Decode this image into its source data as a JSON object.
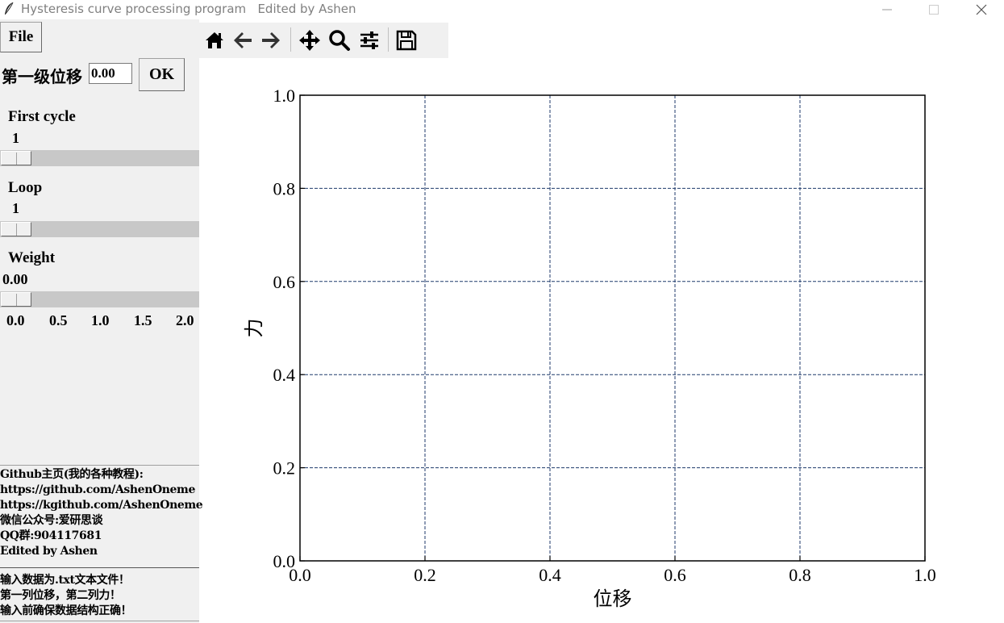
{
  "window": {
    "title": "Hysteresis curve processing program   Edited by Ashen",
    "minimize_icon": "minimize-icon",
    "maximize_icon": "maximize-icon",
    "close_icon": "close-icon"
  },
  "menu": {
    "file_label": "File"
  },
  "displacement": {
    "label": "第一级位移",
    "value": "0.00",
    "ok_label": "OK"
  },
  "sliders": [
    {
      "label": "First cycle",
      "value": "1"
    },
    {
      "label": "Loop",
      "value": "1"
    },
    {
      "label": "Weight",
      "value": "0.00",
      "ticks": [
        "0.0",
        "0.5",
        "1.0",
        "1.5",
        "2.0"
      ]
    }
  ],
  "info": {
    "lines": [
      "Github主页(我的各种教程):",
      "https://github.com/AshenOneme",
      "https://kgithub.com/AshenOneme",
      "微信公众号:爱研思谈",
      "QQ群:904117681",
      "Edited by Ashen"
    ],
    "notes": [
      "输入数据为.txt文本文件！",
      "第一列位移，第二列力！",
      "输入前确保数据结构正确！"
    ]
  },
  "toolbar": {
    "icons": [
      "home-icon",
      "back-arrow-icon",
      "forward-arrow-icon",
      "pan-icon",
      "zoom-icon",
      "configure-subplots-icon",
      "save-icon"
    ]
  },
  "chart_data": {
    "type": "line",
    "title": "",
    "xlabel": "位移",
    "ylabel": "力",
    "xlim": [
      0.0,
      1.0
    ],
    "ylim": [
      0.0,
      1.0
    ],
    "xticks": [
      "0.0",
      "0.2",
      "0.4",
      "0.6",
      "0.8",
      "1.0"
    ],
    "yticks": [
      "0.0",
      "0.2",
      "0.4",
      "0.6",
      "0.8",
      "1.0"
    ],
    "grid": true,
    "grid_style": "dashed",
    "grid_color": "#1f3a6b",
    "series": []
  }
}
